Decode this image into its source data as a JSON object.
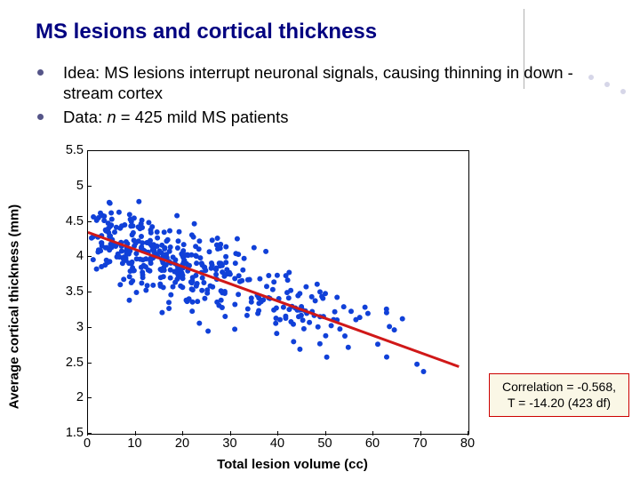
{
  "title": "MS lesions and cortical thickness",
  "bullets": [
    "Idea: MS lesions interrupt neuronal signals, causing thinning in down -stream cortex",
    "Data: n = 425 mild MS patients"
  ],
  "chart": {
    "type": "scatter",
    "xlabel": "Total lesion volume (cc)",
    "ylabel": "Average cortical thickness (mm)",
    "xlim": [
      0,
      80
    ],
    "ylim": [
      1.5,
      5.5
    ],
    "xticks": [
      0,
      10,
      20,
      30,
      40,
      50,
      60,
      70,
      80
    ],
    "yticks": [
      1.5,
      2,
      2.5,
      3,
      3.5,
      4,
      4.5,
      5,
      5.5
    ],
    "point_color": "#1040d8",
    "point_radius": 3,
    "n_points": 425,
    "cluster": {
      "x_mode": 8,
      "x_spread": 18,
      "y_mode": 4.4,
      "y_spread": 0.8
    },
    "line": {
      "color": "#d01818",
      "width": 3,
      "x1": 0,
      "y1": 4.35,
      "x2": 78,
      "y2": 2.45
    },
    "background_color": "#ffffff",
    "axis_color": "#000000",
    "tick_fontsize": 14.5,
    "label_fontsize": 15
  },
  "callout": {
    "line1": "Correlation = -0.568,",
    "line2": "T = -14.20 (423 df)",
    "border_color": "#cc0000",
    "bg_color": "#faf7e6"
  }
}
